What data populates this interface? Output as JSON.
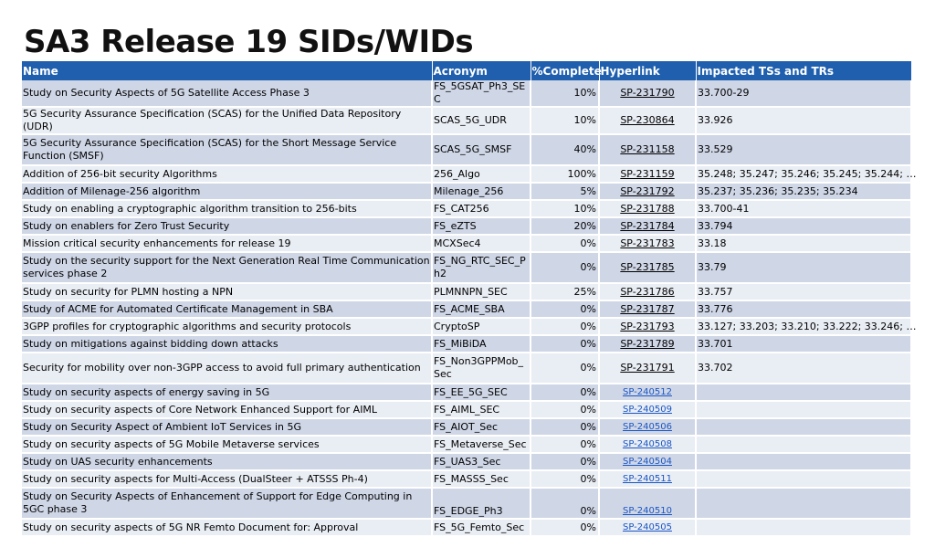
{
  "title": "SA3 Release 19 SIDs/WIDs",
  "colors": {
    "header_bg": "#1f5fae",
    "row_odd": "#cfd6e6",
    "row_even": "#e9edf4",
    "link_blue": "#1a56c4"
  },
  "table": {
    "headers": {
      "name": "Name",
      "acronym": "Acronym",
      "complete": "%Complete",
      "hyperlink": "Hyperlink",
      "impacted": "Impacted TSs and TRs"
    },
    "rows": [
      {
        "name": "Study on Security Aspects of 5G Satellite Access Phase 3",
        "acronym": "FS_5GSAT_Ph3_SEC",
        "complete": "10%",
        "hyperlink": "SP-231790",
        "impacted": "33.700-29"
      },
      {
        "name": "5G Security Assurance Specification (SCAS) for the Unified Data Repository (UDR)",
        "acronym": "SCAS_5G_UDR",
        "complete": "10%",
        "hyperlink": "SP-230864",
        "impacted": "33.926"
      },
      {
        "name": "5G Security Assurance Specification (SCAS) for the Short Message Service Function (SMSF)",
        "acronym": "SCAS_5G_SMSF",
        "complete": "40%",
        "hyperlink": "SP-231158",
        "impacted": "33.529"
      },
      {
        "name": "Addition of 256-bit security Algorithms",
        "acronym": "256_Algo",
        "complete": "100%",
        "hyperlink": "SP-231159",
        "impacted": "35.248; 35.247; 35.246; 35.245; 35.244; …"
      },
      {
        "name": "Addition of Milenage-256 algorithm",
        "acronym": "Milenage_256",
        "complete": "5%",
        "hyperlink": "SP-231792",
        "impacted": "35.237; 35.236; 35.235; 35.234"
      },
      {
        "name": "Study on enabling a cryptographic algorithm transition to 256-bits",
        "acronym": "FS_CAT256",
        "complete": "10%",
        "hyperlink": "SP-231788",
        "impacted": "33.700-41"
      },
      {
        "name": "Study on enablers for Zero Trust Security",
        "acronym": "FS_eZTS",
        "complete": "20%",
        "hyperlink": "SP-231784",
        "impacted": "33.794"
      },
      {
        "name": "Mission critical security enhancements for release 19",
        "acronym": "MCXSec4",
        "complete": "0%",
        "hyperlink": "SP-231783",
        "impacted": "33.18"
      },
      {
        "name": "Study on the security support for the Next Generation Real Time Communication services phase 2",
        "acronym": "FS_NG_RTC_SEC_Ph2",
        "complete": "0%",
        "hyperlink": "SP-231785",
        "impacted": "33.79"
      },
      {
        "name": "Study on security for PLMN hosting a NPN",
        "acronym": "PLMNNPN_SEC",
        "complete": "25%",
        "hyperlink": "SP-231786",
        "impacted": "33.757"
      },
      {
        "name": "Study of ACME for Automated Certificate Management in SBA",
        "acronym": "FS_ACME_SBA",
        "complete": "0%",
        "hyperlink": "SP-231787",
        "impacted": "33.776"
      },
      {
        "name": "3GPP profiles for cryptographic algorithms and security protocols",
        "acronym": "CryptoSP",
        "complete": "0%",
        "hyperlink": "SP-231793",
        "impacted": "33.127; 33.203; 33.210; 33.222; 33.246; …"
      },
      {
        "name": "Study on mitigations against bidding down attacks",
        "acronym": "FS_MiBiDA",
        "complete": "0%",
        "hyperlink": "SP-231789",
        "impacted": "33.701"
      },
      {
        "name": "Security for mobility over non-3GPP access to avoid full primary authentication",
        "acronym": "FS_Non3GPPMob_Sec",
        "complete": "0%",
        "hyperlink": "SP-231791",
        "impacted": "33.702"
      },
      {
        "name": "Study on security aspects of energy saving in 5G",
        "acronym": "FS_EE_5G_SEC",
        "complete": "0%",
        "hyperlink": "SP-240512",
        "impacted": ""
      },
      {
        "name": "Study on security aspects of Core Network Enhanced Support for AIML",
        "acronym": "FS_AIML_SEC",
        "complete": "0%",
        "hyperlink": "SP-240509",
        "impacted": ""
      },
      {
        "name": "Study on Security Aspect of Ambient IoT Services in 5G",
        "acronym": "FS_AIOT_Sec",
        "complete": "0%",
        "hyperlink": "SP-240506",
        "impacted": ""
      },
      {
        "name": "Study on security aspects of 5G Mobile Metaverse services",
        "acronym": "FS_Metaverse_Sec",
        "complete": "0%",
        "hyperlink": "SP-240508",
        "impacted": ""
      },
      {
        "name": "Study on UAS security enhancements",
        "acronym": "FS_UAS3_Sec",
        "complete": "0%",
        "hyperlink": "SP-240504",
        "impacted": ""
      },
      {
        "name": "Study on security aspects for Multi-Access (DualSteer + ATSSS Ph-4)",
        "acronym": "FS_MASSS_Sec",
        "complete": "0%",
        "hyperlink": "SP-240511",
        "impacted": ""
      },
      {
        "name": "Study on Security Aspects of Enhancement of Support for Edge Computing in 5GC phase 3",
        "acronym": "FS_EDGE_Ph3",
        "complete": "0%",
        "hyperlink": "SP-240510",
        "impacted": ""
      },
      {
        "name": "Study on security aspects of 5G NR Femto Document for: Approval",
        "acronym": "FS_5G_Femto_Sec",
        "complete": "0%",
        "hyperlink": "SP-240505",
        "impacted": ""
      }
    ]
  }
}
